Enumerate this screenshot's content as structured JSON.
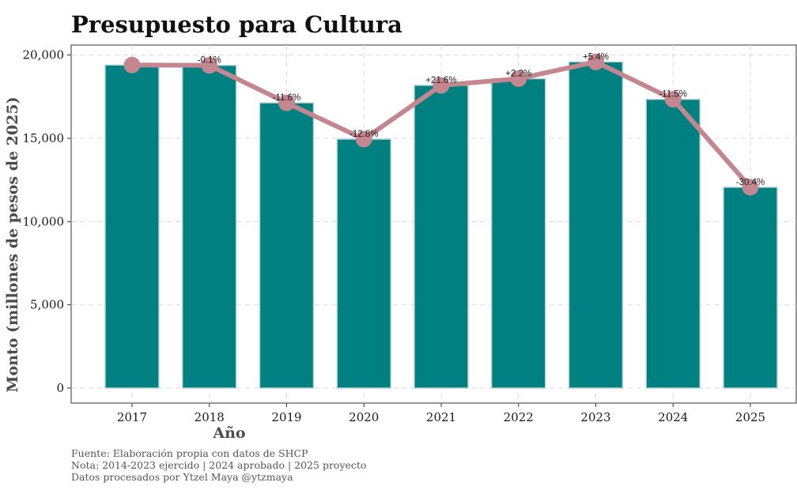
{
  "chart_data": {
    "type": "bar",
    "title": "Presupuesto para Cultura",
    "xlabel": "Año",
    "ylabel": "Monto (millones de pesos de 2025)",
    "categories": [
      "2017",
      "2018",
      "2019",
      "2020",
      "2021",
      "2022",
      "2023",
      "2024",
      "2025"
    ],
    "values": [
      19400,
      19380,
      17130,
      14950,
      18180,
      18580,
      19590,
      17340,
      12060
    ],
    "line_values": [
      19400,
      19380,
      17130,
      14950,
      18180,
      18580,
      19590,
      17340,
      12060
    ],
    "change_labels": [
      "",
      "-0.1%",
      "-11.6%",
      "-12.8%",
      "+21.6%",
      "+2.2%",
      "+5.4%",
      "-11.5%",
      "-30.4%"
    ],
    "yticks": [
      0,
      5000,
      10000,
      15000,
      20000
    ],
    "ytick_labels": [
      "0",
      "5,000",
      "10,000",
      "15,000",
      "20,000"
    ],
    "ylim": [
      -900,
      20600
    ],
    "grid": true,
    "colors": {
      "bar": "#008080",
      "bar_edge": "#b9d1d1",
      "line": "#c4878f",
      "grid": "#d9d9d9"
    }
  },
  "caption": [
    "Fuente: Elaboración propia con datos de SHCP",
    "Nota: 2014-2023 ejercido | 2024 aprobado | 2025 proyecto",
    "Datos procesados por Ytzel Maya @ytzmaya"
  ]
}
